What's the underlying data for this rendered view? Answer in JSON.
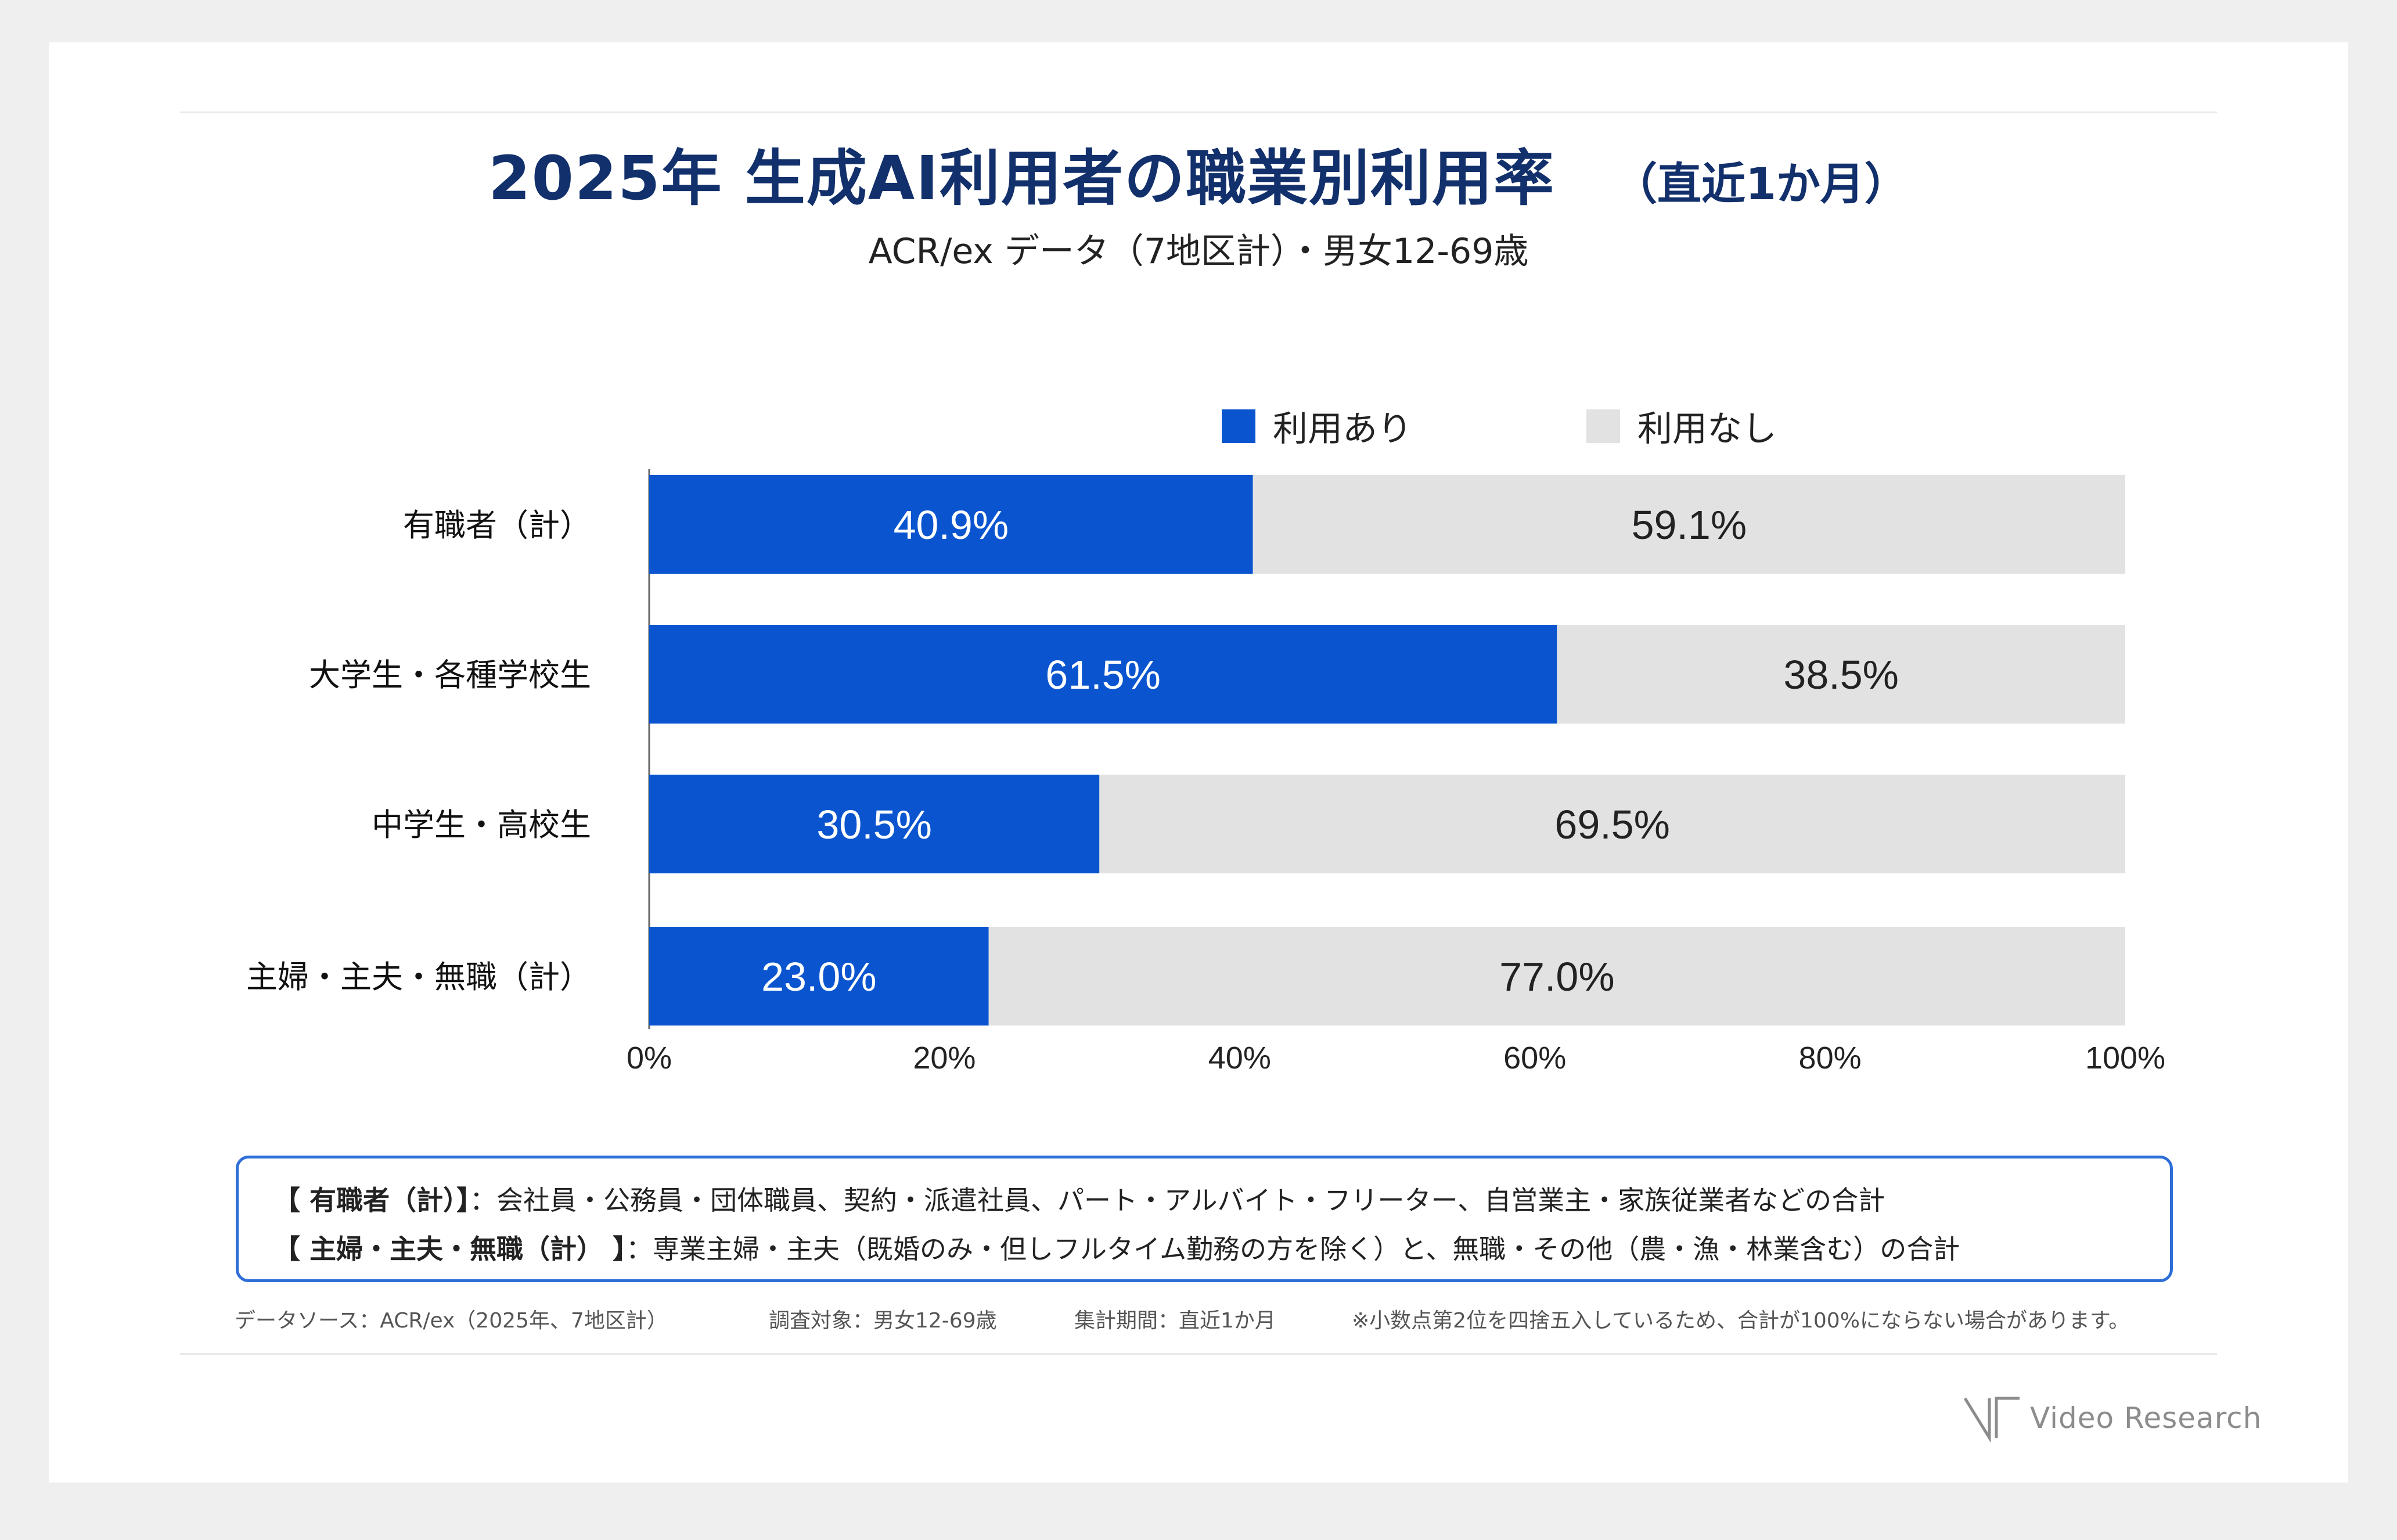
{
  "header": {
    "title_main": "2025年 生成AI利用者の職業別利用率",
    "title_sub": "（直近1か月）",
    "subtitle": "ACR/ex データ（7地区計）・男女12-69歳"
  },
  "colors": {
    "used": "#0a55cf",
    "not_used": "#e2e2e2",
    "title": "#12306b",
    "note_border": "#2d6ed8"
  },
  "chart_data": {
    "type": "bar",
    "orientation": "horizontal",
    "stacked": true,
    "categories": [
      "有職者（計）",
      "大学生・各種学校生",
      "中学生・高校生",
      "主婦・主夫・無職（計）"
    ],
    "series": [
      {
        "name": "利用あり",
        "values": [
          40.9,
          61.5,
          30.5,
          23.0
        ],
        "labels": [
          "40.9%",
          "61.5%",
          "30.5%",
          "23.0%"
        ]
      },
      {
        "name": "利用なし",
        "values": [
          59.1,
          38.5,
          69.5,
          77.0
        ],
        "labels": [
          "59.1%",
          "38.5%",
          "69.5%",
          "77.0%"
        ]
      }
    ],
    "xlim": [
      0,
      100
    ],
    "xticks": [
      "0%",
      "20%",
      "40%",
      "60%",
      "80%",
      "100%"
    ],
    "legend_position": "top-right",
    "grid": false
  },
  "notes": {
    "line1_label": "【 有職者（計）】",
    "line1_text": "：会社員・公務員・団体職員、契約・派遣社員、パート・アルバイト・フリーター、自営業主・家族従業者などの合計",
    "line2_label": "【 主婦・主夫・無職（計） 】",
    "line2_text": "：専業主婦・主夫（既婚のみ・但しフルタイム勤務の方を除く）と、無職・その他（農・漁・林業含む）の合計"
  },
  "footer": {
    "source": "データソース：ACR/ex（2025年、7地区計）",
    "target": "調査対象：男女12-69歳",
    "period": "集計期間：直近1か月",
    "rounding": "※小数点第2位を四捨五入しているため、合計が100%にならない場合があります。"
  },
  "brand": {
    "name": "Video Research"
  }
}
